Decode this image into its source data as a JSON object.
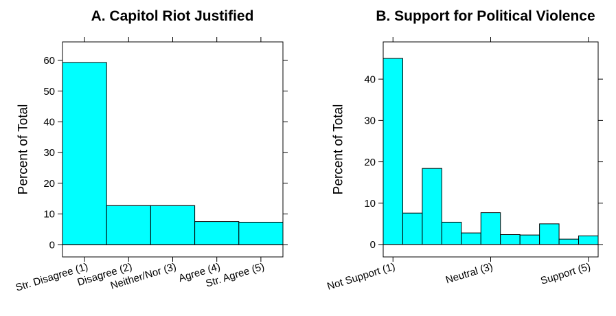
{
  "colors": {
    "bar_fill": "#00FFFF",
    "bar_stroke": "#000000"
  },
  "chart_data": [
    {
      "type": "bar",
      "title": "A. Capitol Riot Justified",
      "xlabel": "",
      "ylabel": "Percent of Total",
      "ylim": [
        -4,
        66
      ],
      "yticks": [
        0,
        10,
        20,
        30,
        40,
        50,
        60
      ],
      "x": [
        1,
        2,
        3,
        4,
        5
      ],
      "xlim": [
        0.5,
        5.5
      ],
      "xticks": [
        {
          "value": 1,
          "label": "Str. Disagree (1)"
        },
        {
          "value": 2,
          "label": "Disagree (2)"
        },
        {
          "value": 3,
          "label": "Neither/Nor (3)"
        },
        {
          "value": 4,
          "label": "Agree (4)"
        },
        {
          "value": 5,
          "label": "Str. Agree (5)"
        }
      ],
      "values": [
        59.3,
        12.7,
        12.7,
        7.5,
        7.3
      ],
      "grid": false,
      "legend": "none"
    },
    {
      "type": "bar",
      "title": "B. Support for Political Violence",
      "xlabel": "",
      "ylabel": "Percent of Total",
      "ylim": [
        -3,
        49
      ],
      "yticks": [
        0,
        10,
        20,
        30,
        40
      ],
      "x": [
        1,
        1.4,
        1.8,
        2.2,
        2.6,
        3,
        3.4,
        3.8,
        4.2,
        4.6,
        5
      ],
      "xlim": [
        0.8,
        5.2
      ],
      "xticks": [
        {
          "value": 1,
          "label": "Not Support (1)"
        },
        {
          "value": 3,
          "label": "Neutral (3)"
        },
        {
          "value": 5,
          "label": "Support (5)"
        }
      ],
      "values": [
        45.0,
        7.6,
        18.4,
        5.4,
        2.8,
        7.7,
        2.4,
        2.3,
        5.0,
        1.3,
        2.1
      ],
      "grid": false,
      "legend": "none"
    }
  ]
}
